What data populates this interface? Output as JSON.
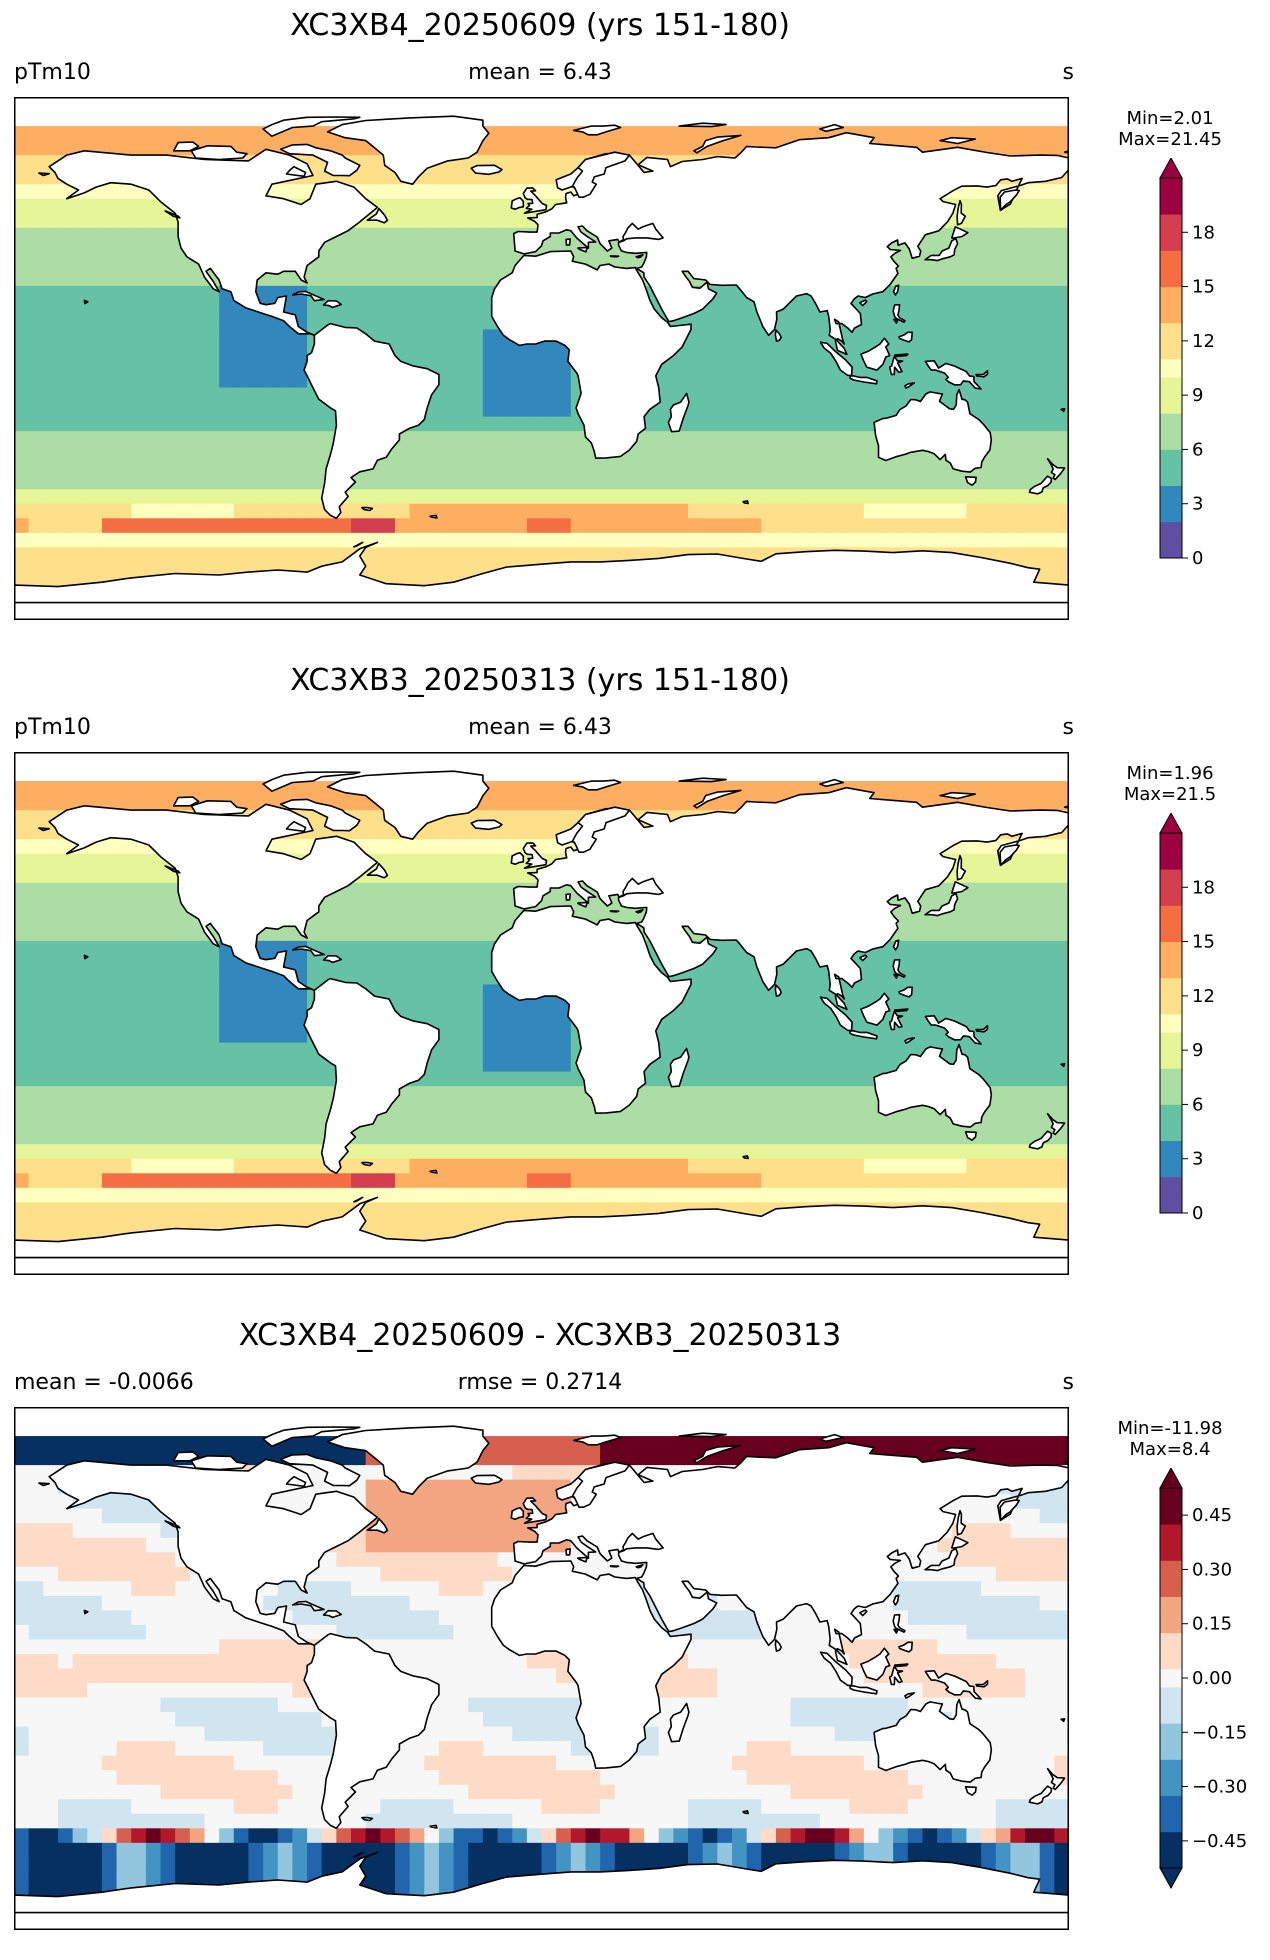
{
  "panels": [
    {
      "title": "XC3XB4_20250609 (yrs 151-180)",
      "left_label": "pTm10",
      "center_label": "mean = 6.43",
      "right_label": "s",
      "min_label": "Min=2.01",
      "max_label": "Max=21.45",
      "colormap": "Spectral_r",
      "colorbar_ticks": [
        "0",
        "3",
        "6",
        "9",
        "12",
        "15",
        "18"
      ],
      "colorbar_range": [
        0,
        21
      ],
      "extend": "max"
    },
    {
      "title": "XC3XB3_20250313 (yrs 151-180)",
      "left_label": "pTm10",
      "center_label": "mean = 6.43",
      "right_label": "s",
      "min_label": "Min=1.96",
      "max_label": "Max=21.5",
      "colormap": "Spectral_r",
      "colorbar_ticks": [
        "0",
        "3",
        "6",
        "9",
        "12",
        "15",
        "18"
      ],
      "colorbar_range": [
        0,
        21
      ],
      "extend": "max"
    },
    {
      "title": "XC3XB4_20250609 - XC3XB3_20250313",
      "left_label": "mean = -0.0066",
      "center_label": "rmse = 0.2714",
      "right_label": "s",
      "min_label": "Min=-11.98",
      "max_label": "Max=8.4",
      "colormap": "RdBu_r",
      "colorbar_ticks": [
        "−0.45",
        "−0.30",
        "−0.15",
        "0.00",
        "0.15",
        "0.30",
        "0.45"
      ],
      "colorbar_range": [
        -0.525,
        0.525
      ],
      "extend": "both"
    }
  ],
  "colors": {
    "spectral": [
      "#5e4fa2",
      "#3288bd",
      "#66c2a5",
      "#abdda4",
      "#e6f598",
      "#ffffbf",
      "#fee08b",
      "#fdae61",
      "#f46d43",
      "#d53e4f",
      "#9e0142"
    ],
    "rdbu": [
      "#053061",
      "#2166ac",
      "#4393c3",
      "#92c5de",
      "#d1e5f0",
      "#f7f7f7",
      "#fddbc7",
      "#f4a582",
      "#d6604d",
      "#b2182b",
      "#67001f"
    ],
    "land": "#ffffff",
    "coast": "#000000"
  }
}
